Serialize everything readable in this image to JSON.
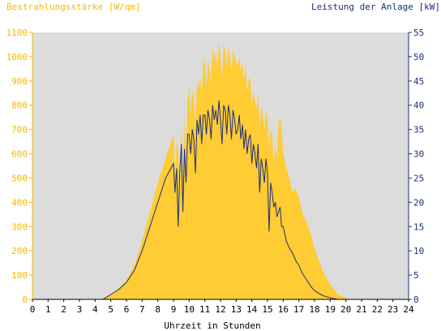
{
  "chart_data": {
    "type": "area",
    "title_left": "Bestrahlungsstärke [W/qm]",
    "title_right": "Leistung der Anlage [kW]",
    "xlabel": "Uhrzeit in Stunden",
    "x_ticks": [
      "0",
      "1",
      "2",
      "3",
      "4",
      "5",
      "6",
      "7",
      "8",
      "9",
      "10",
      "11",
      "12",
      "13",
      "14",
      "15",
      "16",
      "17",
      "18",
      "19",
      "20",
      "21",
      "22",
      "23",
      "24"
    ],
    "xlim": [
      0,
      24
    ],
    "y_left": {
      "label": "Bestrahlungsstärke [W/qm]",
      "ylim": [
        0,
        1100
      ],
      "ticks": [
        "0",
        "100",
        "200",
        "300",
        "400",
        "500",
        "600",
        "700",
        "800",
        "900",
        "1000",
        "1100"
      ]
    },
    "y_right": {
      "label": "Leistung der Anlage [kW]",
      "ylim": [
        0,
        55
      ],
      "ticks": [
        "0",
        "5",
        "10",
        "15",
        "20",
        "25",
        "30",
        "35",
        "40",
        "45",
        "50",
        "55"
      ]
    },
    "grid": false,
    "series": [
      {
        "name": "Bestrahlungsstärke [W/qm]",
        "axis": "left",
        "style": "area",
        "color": "#ffcc33",
        "x": [
          0,
          4.5,
          5,
          5.5,
          6,
          6.5,
          7,
          7.5,
          8,
          8.5,
          9,
          9.1,
          9.2,
          9.3,
          9.4,
          9.5,
          9.6,
          9.7,
          9.8,
          9.9,
          10,
          10.1,
          10.2,
          10.3,
          10.4,
          10.5,
          10.6,
          10.7,
          10.8,
          10.9,
          11,
          11.1,
          11.2,
          11.3,
          11.4,
          11.5,
          11.6,
          11.7,
          11.8,
          11.9,
          12,
          12.1,
          12.2,
          12.3,
          12.4,
          12.5,
          12.6,
          12.7,
          12.8,
          12.9,
          13,
          13.1,
          13.2,
          13.3,
          13.4,
          13.5,
          13.6,
          13.7,
          13.8,
          13.9,
          14,
          14.1,
          14.2,
          14.3,
          14.4,
          14.5,
          14.6,
          14.7,
          14.8,
          14.9,
          15,
          15.1,
          15.2,
          15.3,
          15.4,
          15.5,
          15.6,
          15.7,
          15.8,
          15.9,
          16,
          16.2,
          16.4,
          16.6,
          16.8,
          17,
          17.2,
          17.4,
          17.6,
          17.8,
          18,
          18.5,
          19,
          19.5,
          20,
          20.3,
          20.6,
          21,
          24
        ],
        "y": [
          0,
          0,
          20,
          45,
          80,
          140,
          240,
          360,
          480,
          580,
          680,
          520,
          650,
          620,
          450,
          720,
          500,
          740,
          600,
          820,
          880,
          760,
          860,
          830,
          700,
          900,
          870,
          920,
          840,
          960,
          1000,
          870,
          980,
          950,
          900,
          1050,
          980,
          1030,
          940,
          1060,
          1000,
          900,
          1060,
          1020,
          960,
          1040,
          1000,
          940,
          1030,
          1000,
          980,
          960,
          1000,
          940,
          980,
          900,
          960,
          860,
          900,
          920,
          800,
          860,
          820,
          780,
          860,
          700,
          800,
          760,
          700,
          780,
          740,
          620,
          700,
          680,
          560,
          640,
          580,
          720,
          760,
          700,
          600,
          540,
          500,
          440,
          460,
          420,
          360,
          330,
          300,
          260,
          210,
          120,
          60,
          20,
          5,
          1,
          0,
          0,
          0
        ]
      },
      {
        "name": "Leistung der Anlage [kW]",
        "axis": "right",
        "style": "line",
        "color": "#1a2f7a",
        "x": [
          0,
          4.5,
          5,
          5.5,
          6,
          6.5,
          7,
          7.5,
          8,
          8.5,
          9,
          9.1,
          9.2,
          9.3,
          9.4,
          9.5,
          9.6,
          9.7,
          9.8,
          9.9,
          10,
          10.1,
          10.2,
          10.3,
          10.4,
          10.5,
          10.6,
          10.7,
          10.8,
          10.9,
          11,
          11.1,
          11.2,
          11.3,
          11.4,
          11.5,
          11.6,
          11.7,
          11.8,
          11.9,
          12,
          12.1,
          12.2,
          12.3,
          12.4,
          12.5,
          12.6,
          12.7,
          12.8,
          12.9,
          13,
          13.1,
          13.2,
          13.3,
          13.4,
          13.5,
          13.6,
          13.7,
          13.8,
          13.9,
          14,
          14.1,
          14.2,
          14.3,
          14.4,
          14.5,
          14.6,
          14.7,
          14.8,
          14.9,
          15,
          15.1,
          15.2,
          15.3,
          15.4,
          15.5,
          15.6,
          15.7,
          15.8,
          15.9,
          16,
          16.2,
          16.4,
          16.6,
          16.8,
          17,
          17.2,
          17.4,
          17.6,
          17.8,
          18,
          18.5,
          19,
          19.5,
          20,
          20.3,
          20.6,
          21,
          24
        ],
        "y": [
          0,
          0,
          1,
          2,
          3.5,
          6,
          10,
          15,
          20,
          25,
          28,
          22,
          27,
          15,
          26,
          32,
          18,
          31,
          24,
          34,
          34,
          30,
          35,
          33,
          26,
          37,
          34,
          38,
          32,
          38,
          38,
          34,
          39,
          37,
          33,
          40,
          37,
          39,
          36,
          41,
          37,
          32,
          40,
          39,
          34,
          40,
          38,
          33,
          39,
          37,
          34,
          35,
          38,
          33,
          36,
          31,
          35,
          30,
          33,
          34,
          28,
          32,
          30,
          27,
          32,
          22,
          29,
          27,
          24,
          29,
          26,
          14,
          24,
          22,
          19,
          20,
          17,
          18,
          19,
          15,
          15,
          12,
          10.5,
          9.5,
          8,
          7,
          5.5,
          4.5,
          3.5,
          2.5,
          1.8,
          0.8,
          0.3,
          0,
          0,
          0,
          0,
          0,
          0
        ]
      }
    ]
  },
  "colors": {
    "plot_bg": "#dcdcdc",
    "irradiance_fill": "#ffcc33",
    "power_line": "#1a2f7a",
    "left_axis": "#f5b800",
    "right_axis": "#1a2f7a"
  }
}
